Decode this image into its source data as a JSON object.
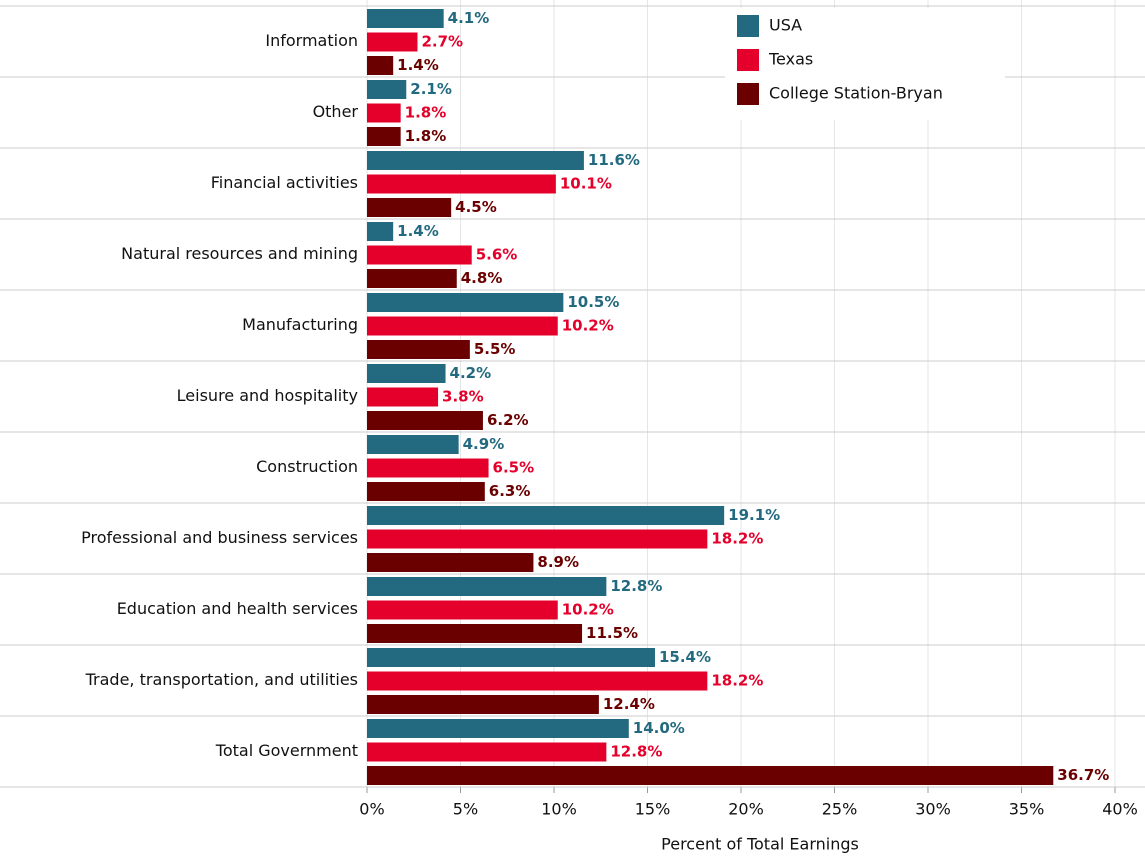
{
  "chart_data": {
    "type": "bar",
    "orientation": "horizontal",
    "x_label": "Percent of Total Earnings",
    "categories": [
      "Information",
      "Other",
      "Financial activities",
      "Natural resources and mining",
      "Manufacturing",
      "Leisure and hospitality",
      "Construction",
      "Professional and business services",
      "Education and health services",
      "Trade, transportation, and utilities",
      "Total Government"
    ],
    "series": [
      {
        "name": "USA",
        "color": "#236a80",
        "values": [
          4.1,
          2.1,
          11.6,
          1.4,
          10.5,
          4.2,
          4.9,
          19.1,
          12.8,
          15.4,
          14.0
        ],
        "value_labels": [
          "4.1%",
          "2.1%",
          "11.6%",
          "1.4%",
          "10.5%",
          "4.2%",
          "4.9%",
          "19.1%",
          "12.8%",
          "15.4%",
          "14.0%"
        ]
      },
      {
        "name": "Texas",
        "color": "#e4002b",
        "values": [
          2.7,
          1.8,
          10.1,
          5.6,
          10.2,
          3.8,
          6.5,
          18.2,
          10.2,
          18.2,
          12.8
        ],
        "value_labels": [
          "2.7%",
          "1.8%",
          "10.1%",
          "5.6%",
          "10.2%",
          "3.8%",
          "6.5%",
          "18.2%",
          "10.2%",
          "18.2%",
          "12.8%"
        ]
      },
      {
        "name": "College Station-Bryan",
        "color": "#6b0000",
        "values": [
          1.4,
          1.8,
          4.5,
          4.8,
          5.5,
          6.2,
          6.3,
          8.9,
          11.5,
          12.4,
          36.7
        ],
        "value_labels": [
          "1.4%",
          "1.8%",
          "4.5%",
          "4.8%",
          "5.5%",
          "6.2%",
          "6.3%",
          "8.9%",
          "11.5%",
          "12.4%",
          "36.7%"
        ]
      }
    ],
    "xlim": [
      0,
      40
    ],
    "xticks": [
      {
        "value": 0,
        "label": "0%"
      },
      {
        "value": 5,
        "label": "5%"
      },
      {
        "value": 10,
        "label": "10%"
      },
      {
        "value": 15,
        "label": "15%"
      },
      {
        "value": 20,
        "label": "20%"
      },
      {
        "value": 25,
        "label": "25%"
      },
      {
        "value": 30,
        "label": "30%"
      },
      {
        "value": 35,
        "label": "35%"
      },
      {
        "value": 40,
        "label": "40%"
      }
    ],
    "grid": true,
    "legend": "upper right"
  }
}
